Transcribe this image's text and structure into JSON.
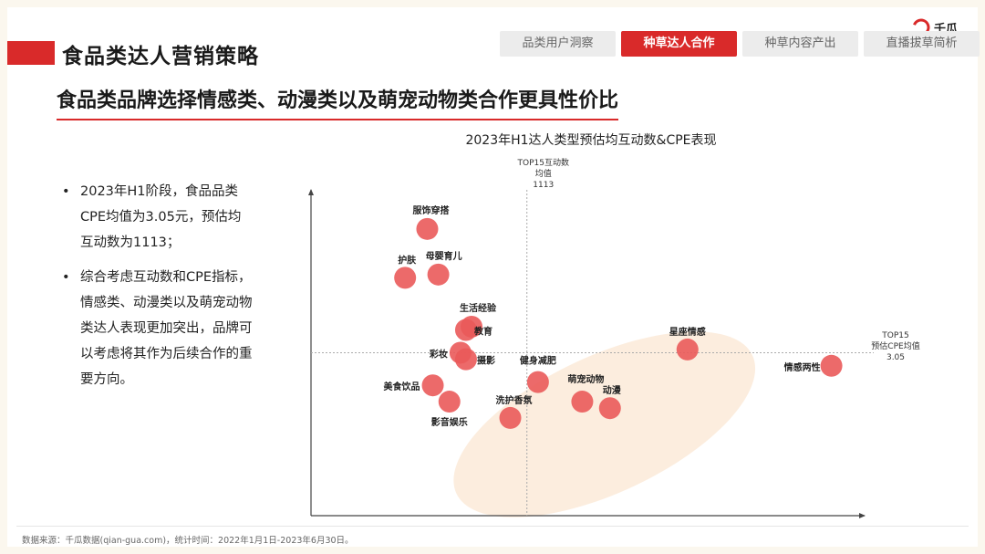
{
  "header": {
    "title": "食品类达人营销策略",
    "logo_text": "千瓜",
    "tabs": [
      {
        "label": "品类用户洞察",
        "active": false
      },
      {
        "label": "种草达人合作",
        "active": true
      },
      {
        "label": "种草内容产出",
        "active": false
      },
      {
        "label": "直播拔草简析",
        "active": false
      }
    ]
  },
  "subtitle": "食品类品牌选择情感类、动漫类以及萌宠动物类合作更具性价比",
  "bullets": [
    "2023年H1阶段，食品品类CPE均值为3.05元，预估均互动数为1113；",
    "综合考虑互动数和CPE指标，情感类、动漫类以及萌宠动物类达人表现更加突出，品牌可以考虑将其作为后续合作的重要方向。"
  ],
  "footer": "数据来源：千瓜数据(qian-gua.com)，统计时间：2022年1月1日-2023年6月30日。",
  "colors": {
    "accent": "#d92a2a",
    "bubble": "#ea5a5a",
    "highlight": "#fbe8d6"
  },
  "chart_data": {
    "type": "scatter",
    "title": "2023年H1达人类型预估均互动数&CPE表现",
    "xlabel": "",
    "ylabel": "",
    "xlim": [
      0,
      10
    ],
    "ylim": [
      0,
      10
    ],
    "vline": {
      "x": 3.9,
      "label": [
        "TOP15互动数",
        "均值",
        "1113"
      ]
    },
    "hline": {
      "y": 5.0,
      "label": [
        "TOP15",
        "预估CPE均值",
        "3.05"
      ]
    },
    "highlight_region": {
      "cx": 5.3,
      "cy": 2.8,
      "rx": 2.95,
      "ry": 2.1,
      "rotation": -25
    },
    "points": [
      {
        "label": "服饰穿搭",
        "x": 2.1,
        "y": 8.8
      },
      {
        "label": "护肤",
        "x": 1.7,
        "y": 7.3
      },
      {
        "label": "母婴育儿",
        "x": 2.3,
        "y": 7.4
      },
      {
        "label": "生活经验",
        "x": 2.9,
        "y": 5.8
      },
      {
        "label": "教育",
        "x": 2.8,
        "y": 5.7
      },
      {
        "label": "彩妆",
        "x": 2.7,
        "y": 5.0
      },
      {
        "label": "摄影",
        "x": 2.8,
        "y": 4.8
      },
      {
        "label": "美食饮品",
        "x": 2.2,
        "y": 4.0
      },
      {
        "label": "影音娱乐",
        "x": 2.5,
        "y": 3.5
      },
      {
        "label": "健身减肥",
        "x": 4.1,
        "y": 4.1
      },
      {
        "label": "洗护香氛",
        "x": 3.6,
        "y": 3.0
      },
      {
        "label": "萌宠动物",
        "x": 4.9,
        "y": 3.5
      },
      {
        "label": "动漫",
        "x": 5.4,
        "y": 3.3
      },
      {
        "label": "星座情感",
        "x": 6.8,
        "y": 5.1
      },
      {
        "label": "情感两性",
        "x": 9.4,
        "y": 4.6
      }
    ]
  }
}
